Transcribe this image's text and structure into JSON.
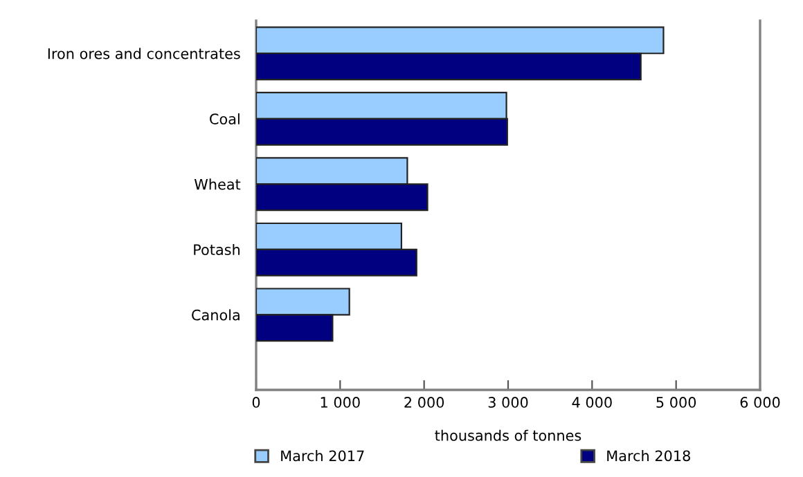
{
  "chart_data": {
    "type": "bar",
    "orientation": "horizontal",
    "categories": [
      "Iron ores and concentrates",
      "Coal",
      "Wheat",
      "Potash",
      "Canola"
    ],
    "series": [
      {
        "name": "March 2017",
        "color": "#99ccff",
        "values": [
          4850,
          2980,
          1800,
          1730,
          1110
        ]
      },
      {
        "name": "March 2018",
        "color": "#000080",
        "values": [
          4580,
          2990,
          2040,
          1910,
          910
        ]
      }
    ],
    "xlabel": "thousands of tonnes",
    "xlim": [
      0,
      6000
    ],
    "xticks": [
      {
        "value": 0,
        "label": "0"
      },
      {
        "value": 1000,
        "label": "1 000"
      },
      {
        "value": 2000,
        "label": "2 000"
      },
      {
        "value": 3000,
        "label": "3 000"
      },
      {
        "value": 4000,
        "label": "4 000"
      },
      {
        "value": 5000,
        "label": "5 000"
      },
      {
        "value": 6000,
        "label": "6 000"
      }
    ],
    "grid": false,
    "legend": "bottom"
  }
}
